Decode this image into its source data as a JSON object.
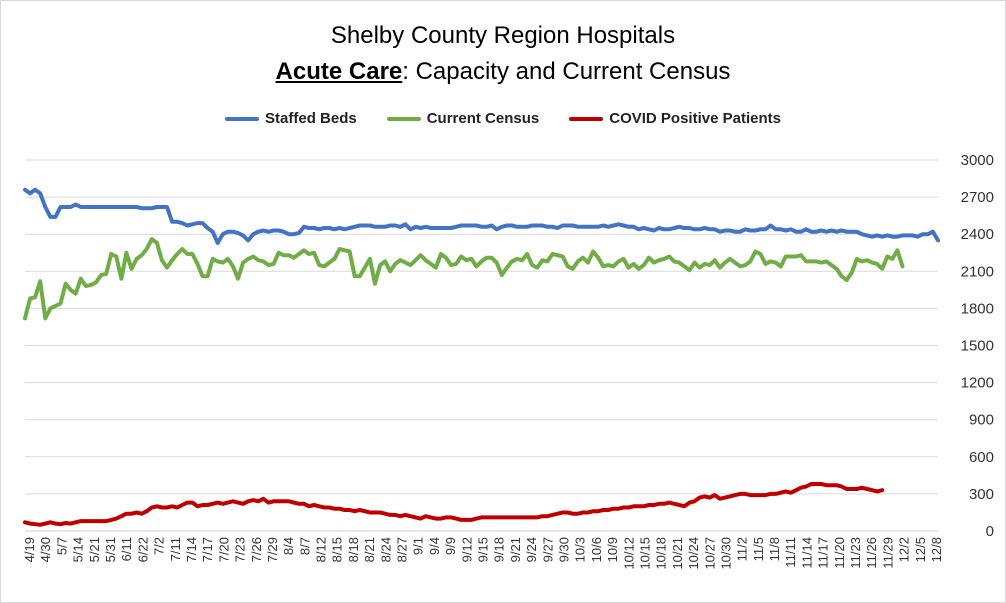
{
  "title": {
    "line1": "Shelby County Region Hospitals",
    "line2_bold": "Acute Care",
    "line2_rest": ": Capacity and Current Census"
  },
  "colors": {
    "staffed": "#4472C4",
    "census": "#70AD47",
    "covid": "#C00000",
    "grid": "#d9d9d9"
  },
  "chart_data": {
    "type": "line",
    "title": "Shelby County Region Hospitals — Acute Care: Capacity and Current Census",
    "legend_position": "top",
    "grid": true,
    "yaxis_side": "right",
    "ylim": [
      0,
      3000
    ],
    "yticks": [
      0,
      300,
      600,
      900,
      1200,
      1500,
      1800,
      2100,
      2400,
      2700,
      3000
    ],
    "x_tick_labels": [
      "4/19",
      "4/30",
      "5/7",
      "5/14",
      "5/21",
      "5/31",
      "6/11",
      "6/22",
      "7/2",
      "7/11",
      "7/14",
      "7/17",
      "7/20",
      "7/23",
      "7/26",
      "7/29",
      "8/4",
      "8/7",
      "8/12",
      "8/15",
      "8/18",
      "8/21",
      "8/24",
      "8/27",
      "9/1",
      "9/4",
      "9/9",
      "9/12",
      "9/15",
      "9/18",
      "9/21",
      "9/24",
      "9/27",
      "9/30",
      "10/3",
      "10/6",
      "10/9",
      "10/12",
      "10/15",
      "10/18",
      "10/21",
      "10/24",
      "10/27",
      "10/30",
      "11/2",
      "11/5",
      "11/8",
      "11/11",
      "11/14",
      "11/17",
      "11/20",
      "11/23",
      "11/26",
      "11/29",
      "12/2",
      "12/5",
      "12/8"
    ],
    "series": [
      {
        "name": "Staffed Beds",
        "color": "#4472C4",
        "values": [
          2760,
          2730,
          2760,
          2730,
          2620,
          2540,
          2540,
          2620,
          2620,
          2620,
          2640,
          2620,
          2620,
          2620,
          2620,
          2620,
          2620,
          2620,
          2620,
          2620,
          2620,
          2620,
          2620,
          2610,
          2610,
          2610,
          2620,
          2620,
          2620,
          2500,
          2500,
          2490,
          2470,
          2480,
          2490,
          2490,
          2450,
          2420,
          2330,
          2400,
          2420,
          2420,
          2410,
          2390,
          2350,
          2400,
          2420,
          2430,
          2420,
          2430,
          2430,
          2420,
          2400,
          2400,
          2410,
          2460,
          2450,
          2450,
          2440,
          2450,
          2450,
          2440,
          2450,
          2440,
          2450,
          2460,
          2470,
          2470,
          2470,
          2460,
          2460,
          2460,
          2470,
          2470,
          2460,
          2480,
          2440,
          2460,
          2450,
          2460,
          2450,
          2450,
          2450,
          2450,
          2450,
          2460,
          2470,
          2470,
          2470,
          2470,
          2460,
          2460,
          2470,
          2440,
          2460,
          2470,
          2470,
          2460,
          2460,
          2460,
          2470,
          2470,
          2470,
          2460,
          2460,
          2450,
          2470,
          2470,
          2470,
          2460,
          2460,
          2460,
          2460,
          2460,
          2470,
          2460,
          2470,
          2480,
          2470,
          2460,
          2460,
          2440,
          2450,
          2440,
          2430,
          2450,
          2440,
          2440,
          2450,
          2460,
          2450,
          2450,
          2440,
          2440,
          2450,
          2440,
          2440,
          2420,
          2430,
          2430,
          2420,
          2420,
          2440,
          2430,
          2430,
          2440,
          2440,
          2470,
          2440,
          2440,
          2430,
          2440,
          2420,
          2420,
          2440,
          2420,
          2420,
          2430,
          2420,
          2430,
          2420,
          2430,
          2420,
          2420,
          2420,
          2400,
          2390,
          2380,
          2390,
          2380,
          2390,
          2380,
          2380,
          2390,
          2390,
          2390,
          2380,
          2400,
          2400,
          2420,
          2350
        ]
      },
      {
        "name": "Current Census",
        "color": "#70AD47",
        "values": [
          1720,
          1880,
          1890,
          2020,
          1720,
          1800,
          1820,
          1840,
          2000,
          1950,
          1920,
          2040,
          1980,
          1990,
          2010,
          2070,
          2080,
          2240,
          2220,
          2040,
          2250,
          2120,
          2200,
          2230,
          2280,
          2360,
          2330,
          2190,
          2130,
          2190,
          2240,
          2280,
          2240,
          2240,
          2160,
          2060,
          2060,
          2200,
          2180,
          2170,
          2200,
          2140,
          2040,
          2170,
          2200,
          2220,
          2190,
          2180,
          2150,
          2160,
          2250,
          2230,
          2230,
          2210,
          2240,
          2270,
          2240,
          2250,
          2150,
          2140,
          2170,
          2200,
          2280,
          2270,
          2260,
          2060,
          2060,
          2130,
          2200,
          2000,
          2150,
          2180,
          2100,
          2160,
          2190,
          2170,
          2150,
          2190,
          2230,
          2190,
          2160,
          2130,
          2240,
          2210,
          2150,
          2160,
          2220,
          2190,
          2200,
          2140,
          2180,
          2210,
          2210,
          2170,
          2070,
          2130,
          2180,
          2200,
          2190,
          2240,
          2150,
          2130,
          2190,
          2180,
          2240,
          2230,
          2220,
          2140,
          2120,
          2180,
          2210,
          2170,
          2260,
          2210,
          2140,
          2150,
          2140,
          2180,
          2200,
          2130,
          2160,
          2120,
          2150,
          2210,
          2170,
          2190,
          2200,
          2220,
          2180,
          2170,
          2140,
          2110,
          2170,
          2130,
          2160,
          2150,
          2190,
          2130,
          2170,
          2200,
          2170,
          2140,
          2150,
          2180,
          2260,
          2240,
          2160,
          2180,
          2170,
          2140,
          2220,
          2220,
          2220,
          2230,
          2180,
          2180,
          2180,
          2170,
          2180,
          2150,
          2120,
          2060,
          2030,
          2090,
          2200,
          2180,
          2190,
          2170,
          2160,
          2120,
          2220,
          2200,
          2270,
          2140
        ]
      },
      {
        "name": "COVID Positive Patients",
        "color": "#C00000",
        "values": [
          70,
          60,
          55,
          50,
          60,
          70,
          60,
          55,
          65,
          60,
          70,
          80,
          80,
          80,
          80,
          80,
          80,
          90,
          100,
          120,
          140,
          140,
          150,
          140,
          160,
          190,
          200,
          190,
          190,
          200,
          190,
          210,
          230,
          230,
          200,
          210,
          210,
          220,
          230,
          220,
          230,
          240,
          230,
          220,
          240,
          250,
          240,
          260,
          230,
          240,
          240,
          240,
          240,
          230,
          220,
          220,
          200,
          210,
          200,
          190,
          190,
          180,
          180,
          170,
          170,
          160,
          170,
          160,
          150,
          150,
          150,
          140,
          130,
          130,
          120,
          130,
          120,
          110,
          100,
          120,
          110,
          100,
          100,
          110,
          110,
          100,
          90,
          90,
          90,
          100,
          110,
          110,
          110,
          110,
          110,
          110,
          110,
          110,
          110,
          110,
          110,
          110,
          120,
          120,
          130,
          140,
          150,
          150,
          140,
          140,
          150,
          150,
          160,
          160,
          170,
          170,
          180,
          180,
          190,
          190,
          200,
          200,
          200,
          210,
          210,
          220,
          220,
          230,
          220,
          210,
          200,
          230,
          240,
          270,
          280,
          270,
          290,
          260,
          270,
          280,
          290,
          300,
          300,
          290,
          290,
          290,
          290,
          300,
          300,
          310,
          320,
          310,
          330,
          350,
          360,
          380,
          380,
          380,
          370,
          370,
          370,
          360,
          340,
          340,
          340,
          350,
          340,
          330,
          320,
          330
        ]
      }
    ]
  }
}
